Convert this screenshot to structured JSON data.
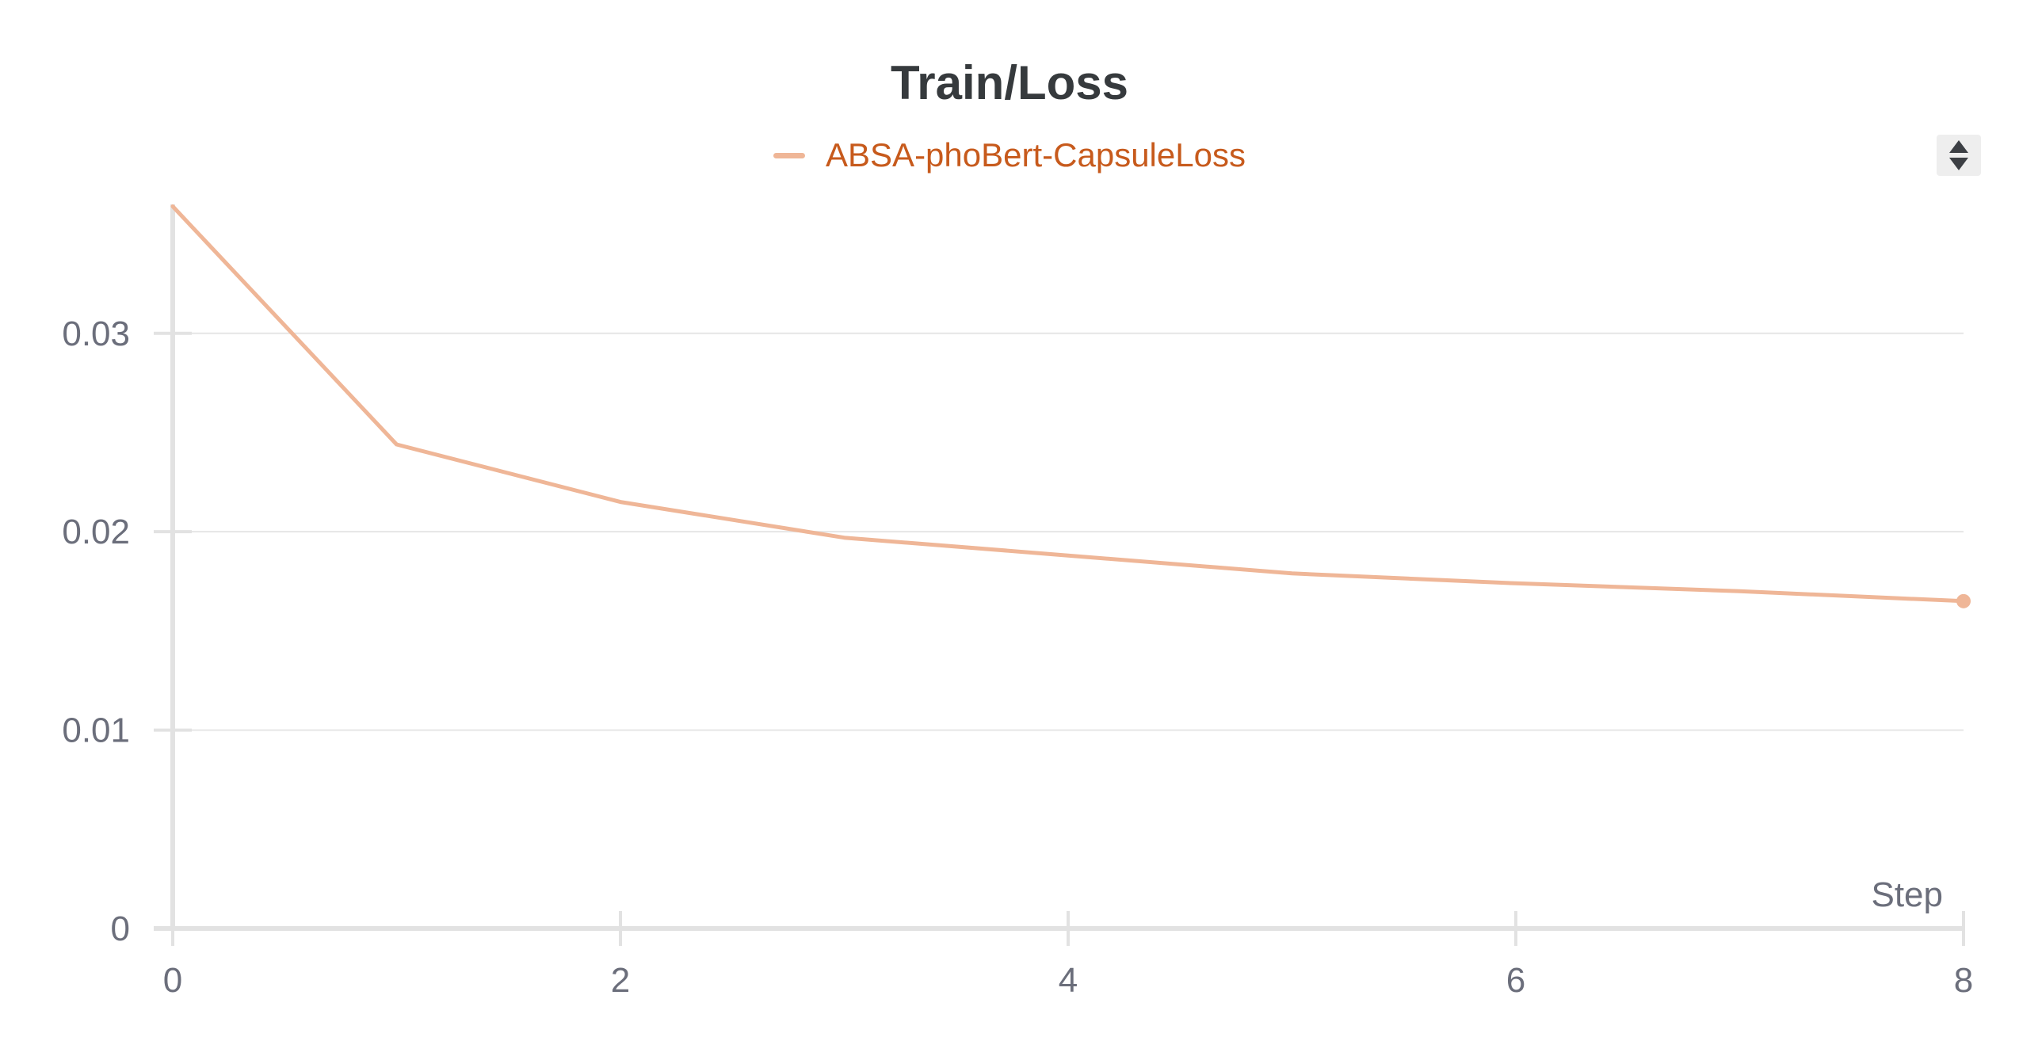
{
  "chart_data": {
    "type": "line",
    "title": "Train/Loss",
    "xlabel": "Step",
    "ylabel": "",
    "xlim": [
      0,
      8
    ],
    "ylim": [
      0,
      0.0365
    ],
    "x_ticks": [
      {
        "value": 0,
        "label": "0"
      },
      {
        "value": 2,
        "label": "2"
      },
      {
        "value": 4,
        "label": "4"
      },
      {
        "value": 6,
        "label": "6"
      },
      {
        "value": 8,
        "label": "8"
      }
    ],
    "y_ticks": [
      {
        "value": 0,
        "label": "0"
      },
      {
        "value": 0.01,
        "label": "0.01"
      },
      {
        "value": 0.02,
        "label": "0.02"
      },
      {
        "value": 0.03,
        "label": "0.03"
      }
    ],
    "grid": true,
    "legend_position": "top-center",
    "series": [
      {
        "name": "ABSA-phoBert-CapsuleLoss",
        "color": "#efb697",
        "label_color": "#c75a1c",
        "x": [
          0,
          1,
          2,
          3,
          4,
          5,
          6,
          7,
          8
        ],
        "y": [
          0.0364,
          0.0244,
          0.0215,
          0.0197,
          0.0188,
          0.0179,
          0.0174,
          0.017,
          0.0165
        ]
      }
    ]
  },
  "controls": {
    "sort_icon": "sort-arrows-icon"
  }
}
